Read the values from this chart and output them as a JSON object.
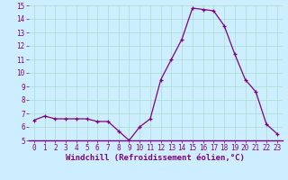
{
  "x": [
    0,
    1,
    2,
    3,
    4,
    5,
    6,
    7,
    8,
    9,
    10,
    11,
    12,
    13,
    14,
    15,
    16,
    17,
    18,
    19,
    20,
    21,
    22,
    23
  ],
  "y": [
    6.5,
    6.8,
    6.6,
    6.6,
    6.6,
    6.6,
    6.4,
    6.4,
    5.7,
    5.0,
    6.0,
    6.6,
    9.5,
    11.0,
    12.5,
    14.8,
    14.7,
    14.6,
    13.5,
    11.4,
    9.5,
    8.6,
    6.2,
    5.5
  ],
  "line_color": "#800080",
  "marker": "+",
  "marker_size": 3,
  "bg_color": "#cceeff",
  "grid_color": "#aaddcc",
  "ylim": [
    5,
    15
  ],
  "xlim": [
    -0.5,
    23.5
  ],
  "yticks": [
    5,
    6,
    7,
    8,
    9,
    10,
    11,
    12,
    13,
    14,
    15
  ],
  "xticks": [
    0,
    1,
    2,
    3,
    4,
    5,
    6,
    7,
    8,
    9,
    10,
    11,
    12,
    13,
    14,
    15,
    16,
    17,
    18,
    19,
    20,
    21,
    22,
    23
  ],
  "tick_color": "#800080",
  "tick_fontsize": 5.5,
  "xlabel": "Windchill (Refroidissement éolien,°C)",
  "xlabel_fontsize": 6.5,
  "label_color": "#800080",
  "spine_color": "#800080",
  "axis_bottom_color": "#800080"
}
